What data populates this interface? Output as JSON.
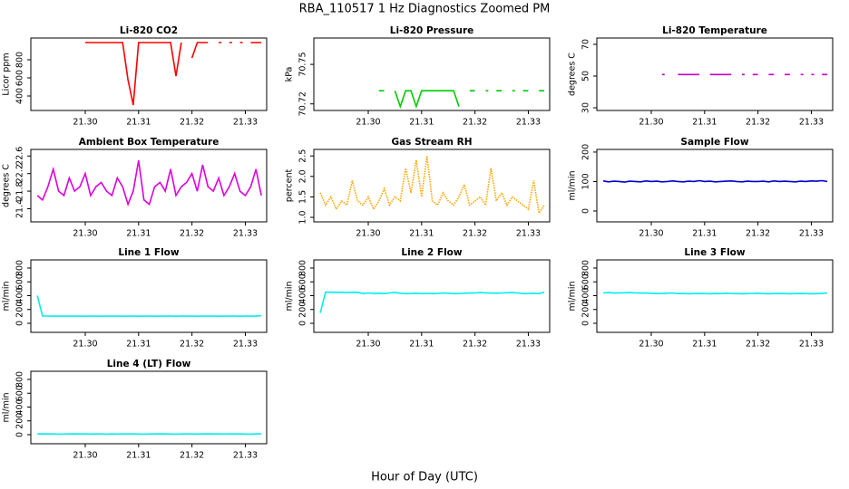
{
  "title": "RBA_110517  1 Hz Diagnostics Zoomed PM",
  "xlabel": "Hour of Day (UTC)",
  "chart_data": [
    {
      "type": "line",
      "title": "Li-820 CO2",
      "ylabel": "Licor ppm",
      "color": "#ff0000",
      "x": [
        21.291,
        21.292,
        21.293,
        21.294,
        21.295,
        21.296,
        21.297,
        21.298,
        21.299,
        21.3,
        21.301,
        21.302,
        21.303,
        21.304,
        21.305,
        21.306,
        21.307,
        21.308,
        21.309,
        21.31,
        21.311,
        21.312,
        21.313,
        21.314,
        21.315,
        21.316,
        21.317,
        21.318,
        21.319,
        21.32,
        21.321,
        21.322,
        21.323,
        21.324,
        21.325,
        21.326,
        21.327,
        21.328,
        21.329,
        21.33,
        21.331,
        21.332,
        21.333
      ],
      "values": [
        null,
        null,
        null,
        null,
        null,
        null,
        null,
        null,
        null,
        990,
        990,
        990,
        990,
        990,
        990,
        990,
        990,
        580,
        300,
        990,
        990,
        990,
        990,
        990,
        990,
        990,
        620,
        990,
        null,
        820,
        990,
        990,
        990,
        null,
        990,
        null,
        990,
        null,
        990,
        null,
        990,
        990,
        990
      ],
      "xlim": [
        21.2898,
        21.334
      ],
      "xticks": [
        {
          "value": 21.3,
          "label": "21.30"
        },
        21.31,
        21.32,
        21.33
      ],
      "ylim": [
        240,
        1040
      ],
      "yticks": [
        400,
        600,
        800
      ]
    },
    {
      "type": "line",
      "title": "Li-820 Pressure",
      "ylabel": "kPa",
      "color": "#00cc00",
      "x": [
        21.291,
        21.292,
        21.293,
        21.294,
        21.295,
        21.296,
        21.297,
        21.298,
        21.299,
        21.3,
        21.301,
        21.302,
        21.303,
        21.304,
        21.305,
        21.306,
        21.307,
        21.308,
        21.309,
        21.31,
        21.311,
        21.312,
        21.313,
        21.314,
        21.315,
        21.316,
        21.317,
        21.318,
        21.319,
        21.32,
        21.321,
        21.322,
        21.323,
        21.324,
        21.325,
        21.326,
        21.327,
        21.328,
        21.329,
        21.33,
        21.331,
        21.332,
        21.333
      ],
      "values": [
        null,
        null,
        null,
        null,
        null,
        null,
        null,
        null,
        null,
        null,
        null,
        70.73,
        70.73,
        null,
        70.73,
        70.718,
        70.73,
        70.73,
        70.718,
        70.73,
        70.73,
        70.73,
        70.73,
        70.73,
        70.73,
        70.73,
        70.718,
        null,
        70.73,
        70.73,
        null,
        70.73,
        null,
        70.73,
        70.73,
        null,
        70.73,
        null,
        70.73,
        70.73,
        null,
        70.73,
        70.73
      ],
      "xlim": [
        21.2898,
        21.334
      ],
      "xticks": [
        {
          "value": 21.3,
          "label": "21.30"
        },
        21.31,
        21.32,
        21.33
      ],
      "ylim": [
        70.715,
        70.77
      ],
      "yticks": [
        70.72,
        70.75
      ]
    },
    {
      "type": "line",
      "title": "Li-820 Temperature",
      "ylabel": "degrees C",
      "color": "#cc00cc",
      "x": [
        21.291,
        21.292,
        21.293,
        21.294,
        21.295,
        21.296,
        21.297,
        21.298,
        21.299,
        21.3,
        21.301,
        21.302,
        21.303,
        21.304,
        21.305,
        21.306,
        21.307,
        21.308,
        21.309,
        21.31,
        21.311,
        21.312,
        21.313,
        21.314,
        21.315,
        21.316,
        21.317,
        21.318,
        21.319,
        21.32,
        21.321,
        21.322,
        21.323,
        21.324,
        21.325,
        21.326,
        21.327,
        21.328,
        21.329,
        21.33,
        21.331,
        21.332,
        21.333
      ],
      "values": [
        null,
        null,
        null,
        null,
        null,
        null,
        null,
        null,
        null,
        null,
        null,
        51,
        null,
        null,
        51,
        51,
        51,
        51,
        51,
        null,
        51,
        51,
        51,
        51,
        51,
        null,
        51,
        null,
        51,
        51,
        null,
        51,
        51,
        null,
        51,
        51,
        null,
        51,
        null,
        51,
        null,
        51,
        51
      ],
      "xlim": [
        21.2898,
        21.334
      ],
      "xticks": [
        {
          "value": 21.3,
          "label": "21.30"
        },
        21.31,
        21.32,
        21.33
      ],
      "ylim": [
        28.3,
        74
      ],
      "yticks": [
        30,
        50,
        70
      ]
    },
    {
      "type": "line",
      "title": "Ambient Box Temperature",
      "ylabel": "degrees C",
      "color": "#dd00dd",
      "x": [
        21.291,
        21.292,
        21.293,
        21.294,
        21.295,
        21.296,
        21.297,
        21.298,
        21.299,
        21.3,
        21.301,
        21.302,
        21.303,
        21.304,
        21.305,
        21.306,
        21.307,
        21.308,
        21.309,
        21.31,
        21.311,
        21.312,
        21.313,
        21.314,
        21.315,
        21.316,
        21.317,
        21.318,
        21.319,
        21.32,
        21.321,
        21.322,
        21.323,
        21.324,
        21.325,
        21.326,
        21.327,
        21.328,
        21.329,
        21.33,
        21.331,
        21.332,
        21.333
      ],
      "values": [
        21.7,
        21.6,
        21.9,
        22.3,
        21.8,
        21.7,
        22.1,
        21.8,
        21.9,
        22.2,
        21.7,
        21.9,
        22.0,
        21.8,
        21.7,
        22.1,
        21.9,
        21.5,
        21.8,
        22.5,
        21.6,
        21.5,
        21.9,
        22.0,
        21.8,
        22.3,
        21.7,
        21.9,
        22.0,
        22.2,
        21.8,
        22.4,
        21.9,
        21.8,
        22.1,
        21.7,
        21.9,
        22.2,
        21.8,
        21.7,
        21.9,
        22.3,
        21.7
      ],
      "xlim": [
        21.2898,
        21.334
      ],
      "xticks": [
        {
          "value": 21.3,
          "label": "21.30"
        },
        21.31,
        21.32,
        21.33
      ],
      "ylim": [
        21.1,
        22.75
      ],
      "yticks": [
        21.4,
        21.8,
        22.2,
        22.6
      ]
    },
    {
      "type": "line",
      "title": "Gas Stream RH",
      "ylabel": "percent",
      "color": "#ffa500",
      "linestyle": "dotted",
      "x": [
        21.291,
        21.292,
        21.293,
        21.294,
        21.295,
        21.296,
        21.297,
        21.298,
        21.299,
        21.3,
        21.301,
        21.302,
        21.303,
        21.304,
        21.305,
        21.306,
        21.307,
        21.308,
        21.309,
        21.31,
        21.311,
        21.312,
        21.313,
        21.314,
        21.315,
        21.316,
        21.317,
        21.318,
        21.319,
        21.32,
        21.321,
        21.322,
        21.323,
        21.324,
        21.325,
        21.326,
        21.327,
        21.328,
        21.329,
        21.33,
        21.331,
        21.332,
        21.333
      ],
      "values": [
        1.6,
        1.3,
        1.5,
        1.2,
        1.4,
        1.3,
        1.9,
        1.4,
        1.3,
        1.5,
        1.2,
        1.4,
        1.7,
        1.3,
        1.5,
        1.4,
        2.2,
        1.6,
        2.4,
        1.5,
        2.5,
        1.4,
        1.3,
        1.6,
        1.4,
        1.3,
        1.5,
        1.8,
        1.3,
        1.4,
        1.5,
        1.3,
        2.2,
        1.4,
        1.6,
        1.3,
        1.5,
        1.4,
        1.3,
        1.2,
        1.9,
        1.1,
        1.3
      ],
      "xlim": [
        21.2898,
        21.334
      ],
      "xticks": [
        {
          "value": 21.3,
          "label": "21.30"
        },
        21.31,
        21.32,
        21.33
      ],
      "ylim": [
        0.89,
        2.66
      ],
      "yticks": [
        {
          "value": 1,
          "label": "1.0"
        },
        1.5,
        {
          "value": 2,
          "label": "2.0"
        },
        2.5
      ]
    },
    {
      "type": "line",
      "title": "Sample Flow",
      "ylabel": "ml/min",
      "color": "#0000cc",
      "x": [
        21.291,
        21.292,
        21.293,
        21.294,
        21.295,
        21.296,
        21.297,
        21.298,
        21.299,
        21.3,
        21.301,
        21.302,
        21.303,
        21.304,
        21.305,
        21.306,
        21.307,
        21.308,
        21.309,
        21.31,
        21.311,
        21.312,
        21.313,
        21.314,
        21.315,
        21.316,
        21.317,
        21.318,
        21.319,
        21.32,
        21.321,
        21.322,
        21.323,
        21.324,
        21.325,
        21.326,
        21.327,
        21.328,
        21.329,
        21.33,
        21.331,
        21.332,
        21.333
      ],
      "values": [
        102,
        99,
        101,
        100,
        98,
        101,
        100,
        99,
        102,
        100,
        101,
        99,
        100,
        102,
        100,
        99,
        101,
        100,
        103,
        100,
        101,
        99,
        100,
        101,
        102,
        100,
        99,
        101,
        100,
        100,
        101,
        99,
        102,
        100,
        101,
        100,
        99,
        101,
        100,
        102,
        101,
        103,
        100
      ],
      "xlim": [
        21.2898,
        21.334
      ],
      "xticks": [
        {
          "value": 21.3,
          "label": "21.30"
        },
        21.31,
        21.32,
        21.33
      ],
      "ylim": [
        -37,
        209
      ],
      "yticks": [
        0,
        100,
        200
      ]
    },
    {
      "type": "line",
      "title": "Line 1 Flow",
      "ylabel": "ml/min",
      "color": "#00eeee",
      "x": [
        21.291,
        21.292,
        21.293,
        21.294,
        21.295,
        21.296,
        21.297,
        21.298,
        21.299,
        21.3,
        21.301,
        21.302,
        21.303,
        21.304,
        21.305,
        21.306,
        21.307,
        21.308,
        21.309,
        21.31,
        21.311,
        21.312,
        21.313,
        21.314,
        21.315,
        21.316,
        21.317,
        21.318,
        21.319,
        21.32,
        21.321,
        21.322,
        21.323,
        21.324,
        21.325,
        21.326,
        21.327,
        21.328,
        21.329,
        21.33,
        21.331,
        21.332,
        21.333
      ],
      "values": [
        400,
        105,
        105,
        104,
        105,
        103,
        105,
        104,
        105,
        103,
        104,
        105,
        103,
        104,
        105,
        104,
        103,
        105,
        104,
        103,
        104,
        105,
        103,
        104,
        105,
        104,
        103,
        104,
        105,
        104,
        103,
        104,
        105,
        104,
        103,
        104,
        105,
        104,
        103,
        104,
        105,
        104,
        110
      ],
      "xlim": [
        21.2898,
        21.334
      ],
      "xticks": [
        {
          "value": 21.3,
          "label": "21.30"
        },
        21.31,
        21.32,
        21.33
      ],
      "ylim": [
        -131,
        918
      ],
      "yticks": [
        0,
        200,
        400,
        600,
        800
      ]
    },
    {
      "type": "line",
      "title": "Line 2 Flow",
      "ylabel": "ml/min",
      "color": "#00eeee",
      "x": [
        21.291,
        21.292,
        21.293,
        21.294,
        21.295,
        21.296,
        21.297,
        21.298,
        21.299,
        21.3,
        21.301,
        21.302,
        21.303,
        21.304,
        21.305,
        21.306,
        21.307,
        21.308,
        21.309,
        21.31,
        21.311,
        21.312,
        21.313,
        21.314,
        21.315,
        21.316,
        21.317,
        21.318,
        21.319,
        21.32,
        21.321,
        21.322,
        21.323,
        21.324,
        21.325,
        21.326,
        21.327,
        21.328,
        21.329,
        21.33,
        21.331,
        21.332,
        21.333
      ],
      "values": [
        150,
        450,
        450,
        448,
        450,
        445,
        450,
        448,
        430,
        440,
        432,
        435,
        430,
        440,
        445,
        435,
        430,
        432,
        435,
        430,
        433,
        430,
        432,
        440,
        435,
        430,
        432,
        435,
        438,
        440,
        445,
        440,
        438,
        435,
        440,
        442,
        445,
        440,
        430,
        432,
        435,
        430,
        450
      ],
      "xlim": [
        21.2898,
        21.334
      ],
      "xticks": [
        {
          "value": 21.3,
          "label": "21.30"
        },
        21.31,
        21.32,
        21.33
      ],
      "ylim": [
        -131,
        918
      ],
      "yticks": [
        0,
        200,
        400,
        600,
        800
      ]
    },
    {
      "type": "line",
      "title": "Line 3 Flow",
      "ylabel": "ml/min",
      "color": "#00eeee",
      "x": [
        21.291,
        21.292,
        21.293,
        21.294,
        21.295,
        21.296,
        21.297,
        21.298,
        21.299,
        21.3,
        21.301,
        21.302,
        21.303,
        21.304,
        21.305,
        21.306,
        21.307,
        21.308,
        21.309,
        21.31,
        21.311,
        21.312,
        21.313,
        21.314,
        21.315,
        21.316,
        21.317,
        21.318,
        21.319,
        21.32,
        21.321,
        21.322,
        21.323,
        21.324,
        21.325,
        21.326,
        21.327,
        21.328,
        21.329,
        21.33,
        21.331,
        21.332,
        21.333
      ],
      "values": [
        440,
        445,
        438,
        440,
        442,
        445,
        440,
        438,
        440,
        436,
        430,
        432,
        435,
        440,
        430,
        432,
        428,
        430,
        432,
        430,
        428,
        432,
        430,
        435,
        432,
        430,
        428,
        430,
        432,
        436,
        430,
        428,
        430,
        432,
        430,
        428,
        430,
        432,
        430,
        428,
        430,
        432,
        440
      ],
      "xlim": [
        21.2898,
        21.334
      ],
      "xticks": [
        {
          "value": 21.3,
          "label": "21.30"
        },
        21.31,
        21.32,
        21.33
      ],
      "ylim": [
        -131,
        918
      ],
      "yticks": [
        0,
        200,
        400,
        600,
        800
      ]
    },
    {
      "type": "line",
      "title": "Line 4 (LT) Flow",
      "ylabel": "ml/min",
      "color": "#00eeee",
      "x": [
        21.291,
        21.292,
        21.293,
        21.294,
        21.295,
        21.296,
        21.297,
        21.298,
        21.299,
        21.3,
        21.301,
        21.302,
        21.303,
        21.304,
        21.305,
        21.306,
        21.307,
        21.308,
        21.309,
        21.31,
        21.311,
        21.312,
        21.313,
        21.314,
        21.315,
        21.316,
        21.317,
        21.318,
        21.319,
        21.32,
        21.321,
        21.322,
        21.323,
        21.324,
        21.325,
        21.326,
        21.327,
        21.328,
        21.329,
        21.33,
        21.331,
        21.332,
        21.333
      ],
      "values": [
        10,
        12,
        11,
        10,
        8,
        9,
        10,
        12,
        11,
        10,
        9,
        10,
        11,
        8,
        10,
        9,
        10,
        11,
        10,
        9,
        8,
        10,
        11,
        12,
        10,
        9,
        8,
        10,
        11,
        10,
        9,
        10,
        12,
        11,
        10,
        9,
        10,
        11,
        10,
        9,
        8,
        10,
        12
      ],
      "xlim": [
        21.2898,
        21.334
      ],
      "xticks": [
        {
          "value": 21.3,
          "label": "21.30"
        },
        21.31,
        21.32,
        21.33
      ],
      "ylim": [
        -131,
        918
      ],
      "yticks": [
        0,
        200,
        400,
        600,
        800
      ]
    }
  ]
}
